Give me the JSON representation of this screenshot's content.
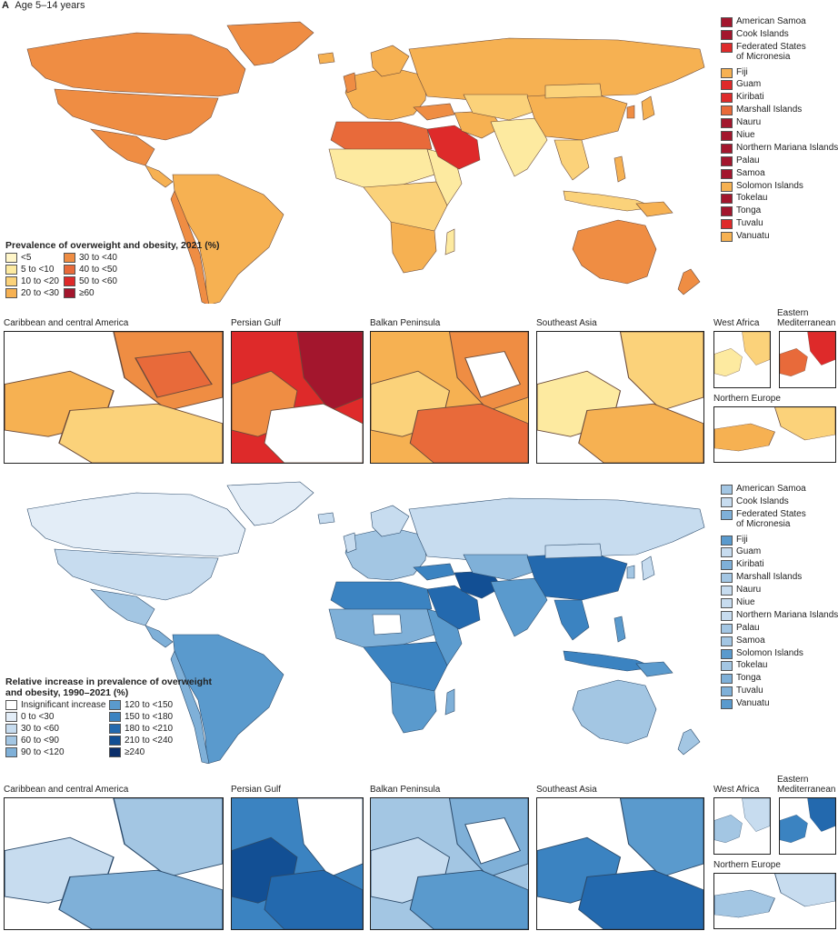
{
  "panel": {
    "letter": "A",
    "subtitle": "Age 5–14 years"
  },
  "top_map": {
    "legend": {
      "title": "Prevalence of overweight and obesity, 2021 (%)",
      "items": [
        {
          "label": "<5",
          "color": "#fff6c9"
        },
        {
          "label": "5 to <10",
          "color": "#fdeaa0"
        },
        {
          "label": "10 to <20",
          "color": "#fbd27a"
        },
        {
          "label": "20 to <30",
          "color": "#f6b152"
        },
        {
          "label": "30 to <40",
          "color": "#ef8d43"
        },
        {
          "label": "40 to <50",
          "color": "#e86a3a"
        },
        {
          "label": "50 to <60",
          "color": "#de2a2a"
        },
        {
          "label": "≥60",
          "color": "#a3162d"
        }
      ]
    },
    "islands": [
      {
        "name": "American Samoa",
        "color": "#a3162d"
      },
      {
        "name": "Cook Islands",
        "color": "#a3162d"
      },
      {
        "name": "Federated States",
        "name2": "of Micronesia",
        "color": "#de2a2a"
      },
      {
        "name": "Fiji",
        "color": "#f6b152"
      },
      {
        "name": "Guam",
        "color": "#de2a2a"
      },
      {
        "name": "Kiribati",
        "color": "#de2a2a"
      },
      {
        "name": "Marshall Islands",
        "color": "#e86a3a"
      },
      {
        "name": "Nauru",
        "color": "#a3162d"
      },
      {
        "name": "Niue",
        "color": "#a3162d"
      },
      {
        "name": "Northern Mariana Islands",
        "color": "#a3162d"
      },
      {
        "name": "Palau",
        "color": "#a3162d"
      },
      {
        "name": "Samoa",
        "color": "#a3162d"
      },
      {
        "name": "Solomon Islands",
        "color": "#f6b152"
      },
      {
        "name": "Tokelau",
        "color": "#a3162d"
      },
      {
        "name": "Tonga",
        "color": "#a3162d"
      },
      {
        "name": "Tuvalu",
        "color": "#de2a2a"
      },
      {
        "name": "Vanuatu",
        "color": "#f6b152"
      }
    ],
    "insets": [
      {
        "title": "Caribbean and central America"
      },
      {
        "title": "Persian Gulf"
      },
      {
        "title": "Balkan Peninsula"
      },
      {
        "title": "Southeast Asia"
      },
      {
        "title": "West Africa"
      },
      {
        "title": "Eastern",
        "title2": "Mediterranean"
      },
      {
        "title": "Northern Europe"
      }
    ]
  },
  "bottom_map": {
    "legend": {
      "title": "Relative increase in prevalence of overweight",
      "title2": "and obesity, 1990–2021 (%)",
      "items": [
        {
          "label": "Insignificant increase",
          "color": "#ffffff"
        },
        {
          "label": "0 to <30",
          "color": "#e3edf7"
        },
        {
          "label": "30 to <60",
          "color": "#c7dcef"
        },
        {
          "label": "60 to <90",
          "color": "#a3c6e3"
        },
        {
          "label": "90 to <120",
          "color": "#7fb0d8"
        },
        {
          "label": "120 to <150",
          "color": "#5a9acd"
        },
        {
          "label": "150 to <180",
          "color": "#3b83c1"
        },
        {
          "label": "180 to <210",
          "color": "#2369ae"
        },
        {
          "label": "210 to <240",
          "color": "#124f94"
        },
        {
          "label": "≥240",
          "color": "#0b2f6b"
        }
      ]
    },
    "islands": [
      {
        "name": "American Samoa",
        "color": "#a3c6e3"
      },
      {
        "name": "Cook Islands",
        "color": "#c7dcef"
      },
      {
        "name": "Federated States",
        "name2": "of Micronesia",
        "color": "#7fb0d8"
      },
      {
        "name": "Fiji",
        "color": "#5a9acd"
      },
      {
        "name": "Guam",
        "color": "#c7dcef"
      },
      {
        "name": "Kiribati",
        "color": "#7fb0d8"
      },
      {
        "name": "Marshall Islands",
        "color": "#a3c6e3"
      },
      {
        "name": "Nauru",
        "color": "#c7dcef"
      },
      {
        "name": "Niue",
        "color": "#c7dcef"
      },
      {
        "name": "Northern Mariana Islands",
        "color": "#c7dcef"
      },
      {
        "name": "Palau",
        "color": "#a3c6e3"
      },
      {
        "name": "Samoa",
        "color": "#a3c6e3"
      },
      {
        "name": "Solomon Islands",
        "color": "#5a9acd"
      },
      {
        "name": "Tokelau",
        "color": "#a3c6e3"
      },
      {
        "name": "Tonga",
        "color": "#7fb0d8"
      },
      {
        "name": "Tuvalu",
        "color": "#7fb0d8"
      },
      {
        "name": "Vanuatu",
        "color": "#5a9acd"
      }
    ],
    "insets": [
      {
        "title": "Caribbean and central America"
      },
      {
        "title": "Persian Gulf"
      },
      {
        "title": "Balkan Peninsula"
      },
      {
        "title": "Southeast Asia"
      },
      {
        "title": "West Africa"
      },
      {
        "title": "Eastern",
        "title2": "Mediterranean"
      },
      {
        "title": "Northern Europe"
      }
    ]
  }
}
